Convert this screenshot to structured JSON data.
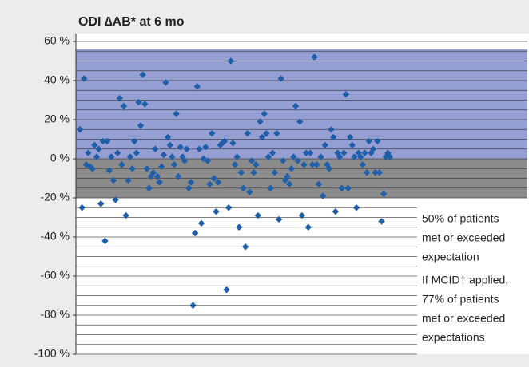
{
  "chart_data": {
    "type": "scatter",
    "title": "ODI ∆AB* at 6 mo",
    "values": [
      15,
      -25,
      41,
      -3,
      3,
      -4,
      -5,
      7,
      1,
      5,
      -23,
      9,
      -42,
      9,
      -6,
      1,
      -11,
      -21,
      3,
      31,
      -3,
      27,
      -29,
      -11,
      1,
      -5,
      9,
      3,
      29,
      17,
      43,
      28,
      -5,
      -15,
      -9,
      -7,
      5,
      -9,
      -12,
      -4,
      2,
      39,
      11,
      7,
      1,
      -3,
      23,
      -9,
      6,
      1,
      -1,
      5,
      -15,
      -12,
      -75,
      -38,
      37,
      5,
      -33,
      0,
      6,
      -1,
      -13,
      13,
      -10,
      -27,
      -12,
      7,
      8,
      9,
      -67,
      -25,
      50,
      8,
      -3,
      1,
      -35,
      -7,
      -15,
      -45,
      13,
      -17,
      -1,
      -7,
      -3,
      -29,
      19,
      11,
      23,
      13,
      1,
      -15,
      3,
      -7,
      13,
      -31,
      41,
      -1,
      -11,
      -9,
      -13,
      -5,
      1,
      27,
      -1,
      19,
      -29,
      -3,
      3,
      -35,
      3,
      -3,
      52,
      -3,
      -13,
      1,
      -19,
      7,
      -3,
      -5,
      15,
      11,
      -27,
      3,
      1,
      -15,
      3,
      33,
      -15,
      11,
      7,
      1,
      -25,
      3,
      1,
      -3,
      3,
      -7,
      9,
      3,
      5,
      -7,
      9,
      -7,
      -32,
      -18,
      1,
      3,
      1
    ],
    "color": "#1f5ea8",
    "ylim": [
      -100,
      60
    ],
    "yticks": [
      {
        "value": -100,
        "label": "-100 %"
      },
      {
        "value": -80,
        "label": "-80 %"
      },
      {
        "value": -60,
        "label": "-60 %"
      },
      {
        "value": -40,
        "label": "-40 %"
      },
      {
        "value": -20,
        "label": "-20 %"
      },
      {
        "value": 0,
        "label": "0 %"
      },
      {
        "value": 20,
        "label": "20 %"
      },
      {
        "value": 40,
        "label": "40 %"
      },
      {
        "value": 60,
        "label": "60 %"
      }
    ],
    "grid": true,
    "grid_step": 5,
    "bands": [
      {
        "from": 0,
        "to": 56,
        "color": "#959fd4"
      },
      {
        "from": -20,
        "to": 0,
        "color": "#8b8b8b"
      }
    ],
    "annotations": [
      "50% of patients",
      "met or exceeded",
      "expectation",
      "If MCID† applied,",
      "77% of patients",
      "met or exceeded",
      "expectations"
    ]
  }
}
